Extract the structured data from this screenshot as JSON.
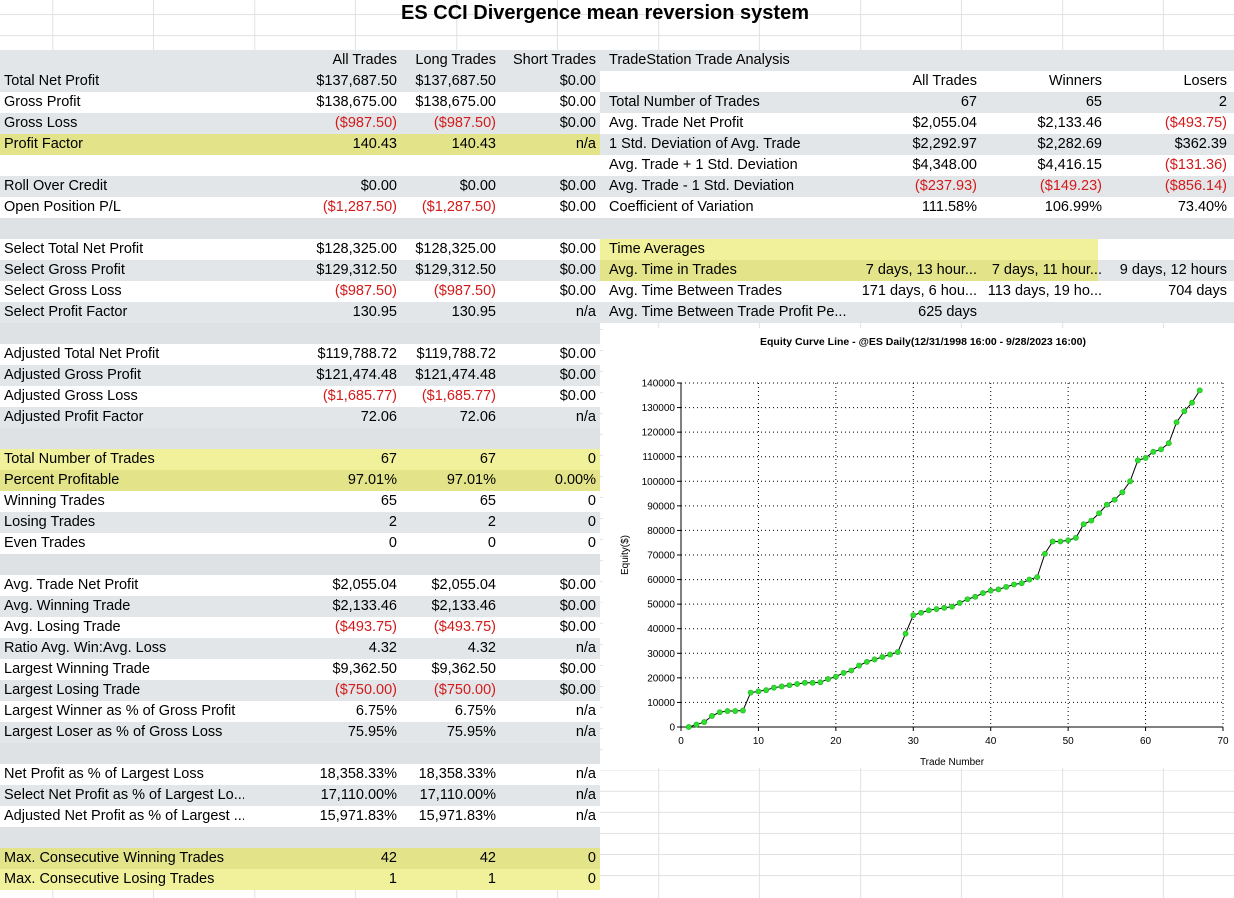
{
  "title": "ES CCI Divergence mean reversion system",
  "stats": {
    "headers": [
      "All Trades",
      "Long Trades",
      "Short Trades"
    ],
    "rows": [
      {
        "label": "Total Net Profit",
        "v": [
          "$137,687.50",
          "$137,687.50",
          "$0.00"
        ],
        "style": "g"
      },
      {
        "label": "Gross Profit",
        "v": [
          "$138,675.00",
          "$138,675.00",
          "$0.00"
        ],
        "style": "w"
      },
      {
        "label": "Gross Loss",
        "v": [
          "($987.50)",
          "($987.50)",
          "$0.00"
        ],
        "style": "g"
      },
      {
        "label": "Profit Factor",
        "v": [
          "140.43",
          "140.43",
          "n/a"
        ],
        "style": "y"
      },
      {
        "label": "",
        "v": [
          "",
          "",
          ""
        ],
        "style": "w"
      },
      {
        "label": "Roll Over Credit",
        "v": [
          "$0.00",
          "$0.00",
          "$0.00"
        ],
        "style": "g"
      },
      {
        "label": "Open Position P/L",
        "v": [
          "($1,287.50)",
          "($1,287.50)",
          "$0.00"
        ],
        "style": "w"
      },
      {
        "label": "",
        "v": [
          "",
          "",
          ""
        ],
        "style": "b"
      },
      {
        "label": "Select Total Net Profit",
        "v": [
          "$128,325.00",
          "$128,325.00",
          "$0.00"
        ],
        "style": "w"
      },
      {
        "label": "Select Gross Profit",
        "v": [
          "$129,312.50",
          "$129,312.50",
          "$0.00"
        ],
        "style": "g"
      },
      {
        "label": "Select Gross Loss",
        "v": [
          "($987.50)",
          "($987.50)",
          "$0.00"
        ],
        "style": "w"
      },
      {
        "label": "Select Profit Factor",
        "v": [
          "130.95",
          "130.95",
          "n/a"
        ],
        "style": "g"
      },
      {
        "label": "",
        "v": [
          "",
          "",
          ""
        ],
        "style": "b"
      },
      {
        "label": "Adjusted Total Net Profit",
        "v": [
          "$119,788.72",
          "$119,788.72",
          "$0.00"
        ],
        "style": "w"
      },
      {
        "label": "Adjusted Gross Profit",
        "v": [
          "$121,474.48",
          "$121,474.48",
          "$0.00"
        ],
        "style": "g"
      },
      {
        "label": "Adjusted Gross Loss",
        "v": [
          "($1,685.77)",
          "($1,685.77)",
          "$0.00"
        ],
        "style": "w"
      },
      {
        "label": "Adjusted Profit Factor",
        "v": [
          "72.06",
          "72.06",
          "n/a"
        ],
        "style": "g"
      },
      {
        "label": "",
        "v": [
          "",
          "",
          ""
        ],
        "style": "b"
      },
      {
        "label": "Total Number of Trades",
        "v": [
          "67",
          "67",
          "0"
        ],
        "style": "yw"
      },
      {
        "label": "Percent Profitable",
        "v": [
          "97.01%",
          "97.01%",
          "0.00%"
        ],
        "style": "y"
      },
      {
        "label": "Winning Trades",
        "v": [
          "65",
          "65",
          "0"
        ],
        "style": "w"
      },
      {
        "label": "Losing Trades",
        "v": [
          "2",
          "2",
          "0"
        ],
        "style": "g"
      },
      {
        "label": "Even Trades",
        "v": [
          "0",
          "0",
          "0"
        ],
        "style": "w"
      },
      {
        "label": "",
        "v": [
          "",
          "",
          ""
        ],
        "style": "b"
      },
      {
        "label": "Avg. Trade Net Profit",
        "v": [
          "$2,055.04",
          "$2,055.04",
          "$0.00"
        ],
        "style": "w"
      },
      {
        "label": "Avg. Winning Trade",
        "v": [
          "$2,133.46",
          "$2,133.46",
          "$0.00"
        ],
        "style": "g"
      },
      {
        "label": "Avg. Losing Trade",
        "v": [
          "($493.75)",
          "($493.75)",
          "$0.00"
        ],
        "style": "w"
      },
      {
        "label": "Ratio Avg. Win:Avg. Loss",
        "v": [
          "4.32",
          "4.32",
          "n/a"
        ],
        "style": "g"
      },
      {
        "label": "Largest Winning Trade",
        "v": [
          "$9,362.50",
          "$9,362.50",
          "$0.00"
        ],
        "style": "w"
      },
      {
        "label": "Largest Losing Trade",
        "v": [
          "($750.00)",
          "($750.00)",
          "$0.00"
        ],
        "style": "g"
      },
      {
        "label": "Largest Winner as % of Gross Profit",
        "v": [
          "6.75%",
          "6.75%",
          "n/a"
        ],
        "style": "w"
      },
      {
        "label": "Largest Loser as % of Gross Loss",
        "v": [
          "75.95%",
          "75.95%",
          "n/a"
        ],
        "style": "g"
      },
      {
        "label": "",
        "v": [
          "",
          "",
          ""
        ],
        "style": "b"
      },
      {
        "label": "Net Profit as % of Largest Loss",
        "v": [
          "18,358.33%",
          "18,358.33%",
          "n/a"
        ],
        "style": "w"
      },
      {
        "label": "Select Net Profit as % of Largest Lo...",
        "v": [
          "17,110.00%",
          "17,110.00%",
          "n/a"
        ],
        "style": "g"
      },
      {
        "label": "Adjusted Net Profit as % of Largest ...",
        "v": [
          "15,971.83%",
          "15,971.83%",
          "n/a"
        ],
        "style": "w"
      },
      {
        "label": "",
        "v": [
          "",
          "",
          ""
        ],
        "style": "b"
      },
      {
        "label": "Max. Consecutive Winning Trades",
        "v": [
          "42",
          "42",
          "0"
        ],
        "style": "y"
      },
      {
        "label": "Max. Consecutive Losing Trades",
        "v": [
          "1",
          "1",
          "0"
        ],
        "style": "yw"
      }
    ]
  },
  "analysis": {
    "title": "TradeStation Trade Analysis",
    "headers": [
      "All Trades",
      "Winners",
      "Losers"
    ],
    "rows": [
      {
        "label": "Total Number of Trades",
        "v": [
          "67",
          "65",
          "2"
        ],
        "style": "g"
      },
      {
        "label": "Avg. Trade Net Profit",
        "v": [
          "$2,055.04",
          "$2,133.46",
          "($493.75)"
        ],
        "style": "w"
      },
      {
        "label": "1 Std. Deviation of Avg. Trade",
        "v": [
          "$2,292.97",
          "$2,282.69",
          "$362.39"
        ],
        "style": "g"
      },
      {
        "label": "Avg. Trade + 1 Std. Deviation",
        "v": [
          "$4,348.00",
          "$4,416.15",
          "($131.36)"
        ],
        "style": "w"
      },
      {
        "label": "Avg. Trade - 1 Std. Deviation",
        "v": [
          "($237.93)",
          "($149.23)",
          "($856.14)"
        ],
        "style": "g"
      },
      {
        "label": "Coefficient of Variation",
        "v": [
          "111.58%",
          "106.99%",
          "73.40%"
        ],
        "style": "w"
      },
      {
        "label": "",
        "v": [
          "",
          "",
          ""
        ],
        "style": "b"
      },
      {
        "label": "Time Averages",
        "v": [
          "",
          "",
          ""
        ],
        "style": "yhead"
      },
      {
        "label": "Avg. Time in Trades",
        "v": [
          "7 days, 13 hour...",
          "7 days, 11 hour...",
          "9 days, 12 hours"
        ],
        "style": "yg"
      },
      {
        "label": "Avg. Time Between Trades",
        "v": [
          "171 days, 6 hou...",
          "113 days, 19 ho...",
          "704 days"
        ],
        "style": "w"
      },
      {
        "label": "Avg. Time Between Trade Profit Pe...",
        "v": [
          "625 days",
          "",
          ""
        ],
        "style": "g"
      }
    ]
  },
  "chart_data": {
    "type": "line",
    "title": "Equity Curve Line - @ES Daily(12/31/1998 16:00 - 9/28/2023 16:00)",
    "xlabel": "Trade Number",
    "ylabel": "Equity($)",
    "xlim": [
      0,
      70
    ],
    "ylim": [
      0,
      140000
    ],
    "xticks": [
      0,
      10,
      20,
      30,
      40,
      50,
      60,
      70
    ],
    "yticks": [
      0,
      10000,
      20000,
      30000,
      40000,
      50000,
      60000,
      70000,
      80000,
      90000,
      100000,
      110000,
      120000,
      130000,
      140000
    ],
    "grid": "dotted",
    "line_color": "#000000",
    "marker_color": "#2ee02e",
    "x": [
      1,
      2,
      3,
      4,
      5,
      6,
      7,
      8,
      9,
      10,
      11,
      12,
      13,
      14,
      15,
      16,
      17,
      18,
      19,
      20,
      21,
      22,
      23,
      24,
      25,
      26,
      27,
      28,
      29,
      30,
      31,
      32,
      33,
      34,
      35,
      36,
      37,
      38,
      39,
      40,
      41,
      42,
      43,
      44,
      45,
      46,
      47,
      48,
      49,
      50,
      51,
      52,
      53,
      54,
      55,
      56,
      57,
      58,
      59,
      60,
      61,
      62,
      63,
      64,
      65,
      66,
      67
    ],
    "values": [
      0,
      1000,
      2000,
      4500,
      6000,
      6500,
      6500,
      6700,
      14000,
      14500,
      15000,
      16000,
      16500,
      17000,
      17500,
      18000,
      18000,
      18200,
      19500,
      20500,
      22000,
      23000,
      25000,
      26500,
      27500,
      28500,
      29500,
      30500,
      38000,
      45500,
      46500,
      47500,
      48000,
      48500,
      49000,
      50500,
      52000,
      53000,
      54500,
      55500,
      56000,
      57000,
      58000,
      58500,
      60000,
      61000,
      70500,
      75500,
      75500,
      76000,
      77000,
      82500,
      84000,
      87000,
      90500,
      92500,
      95500,
      100000,
      108500,
      109500,
      112000,
      113000,
      115500,
      124000,
      128500,
      132000,
      137000
    ]
  }
}
